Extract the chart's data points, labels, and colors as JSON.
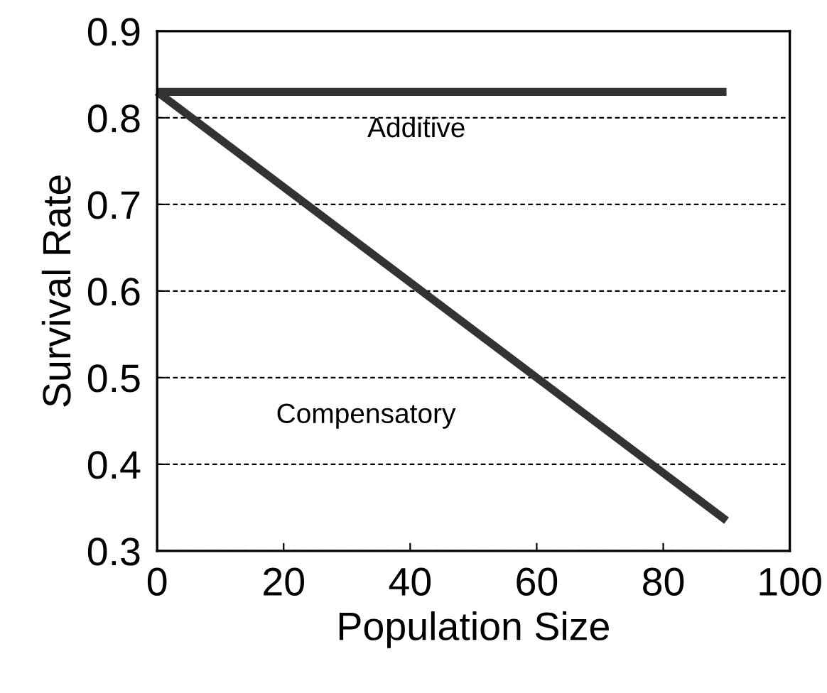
{
  "chart_data": {
    "type": "line",
    "xlabel": "Population Size",
    "ylabel": "Survival Rate",
    "xlim": [
      0,
      100
    ],
    "ylim": [
      0.3,
      0.9
    ],
    "xticks": [
      0,
      20,
      40,
      60,
      80,
      100
    ],
    "yticks": [
      0.3,
      0.4,
      0.5,
      0.6,
      0.7,
      0.8,
      0.9
    ],
    "grid": "y",
    "line_style": "solid",
    "x": [
      0,
      90
    ],
    "series": [
      {
        "color": "#333333",
        "values": [
          0.83,
          0.83
        ]
      },
      {
        "color": "#333333",
        "values": [
          0.83,
          0.335
        ]
      }
    ],
    "annotations": [
      "Additive",
      "Compensatory"
    ]
  }
}
